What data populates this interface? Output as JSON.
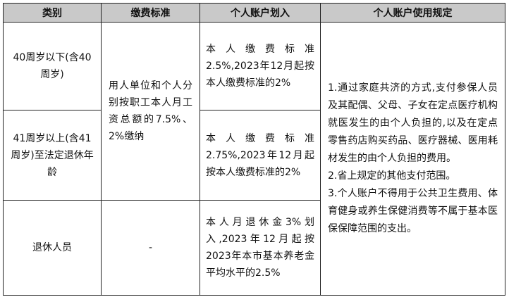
{
  "headers": [
    "类别",
    "缴费标准",
    "个人账户划入",
    "个人账户使用规定"
  ],
  "rows": [
    {
      "category": "40周岁以下(含40周岁)",
      "account_allocation": "本人缴费标准2.5%,2023年12月起按本人缴费标准的2%"
    },
    {
      "category": "41周岁以上(含41周岁)至法定退休年龄",
      "account_allocation": "本人缴费标准2.75%,2023年12月起按本人缴费标准的2%"
    },
    {
      "category": "退休人员",
      "payment_standard": "-",
      "account_allocation": "本人月退休金3%划入,2023年12月起按2023年本市基本养老金平均水平的2.5%"
    }
  ],
  "shared_payment_standard": "用人单位和个人分别按职工本人月工资总额的7.5%、2%缴纳",
  "usage_rules": [
    "1.通过家庭共济的方式,支付参保人员及其配偶、父母、子女在定点医疗机构就医发生的由个人负担的,以及在定点零售药店购买药品、医疗器械、医用耗材发生的由个人负担的费用。",
    "2.省上规定的其他支付范围。",
    "3.个人账户不得用于公共卫生费用、体育健身或养生保健消费等不属于基本医保保障范围的支出。"
  ]
}
